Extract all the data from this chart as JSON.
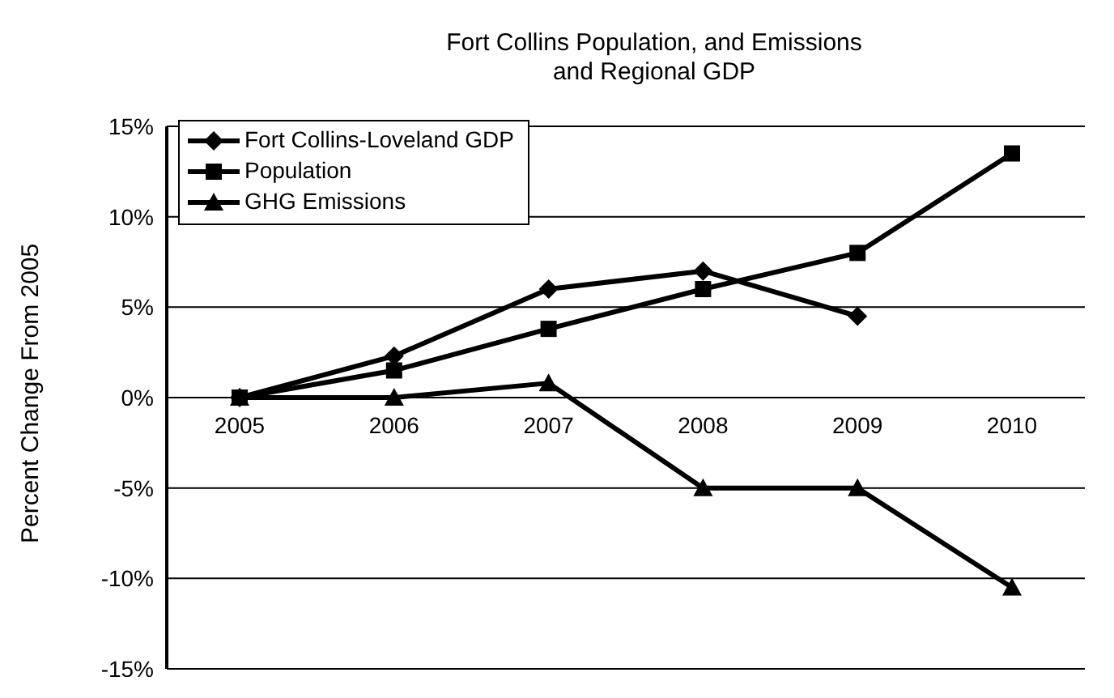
{
  "chart_data": {
    "type": "line",
    "title": "Fort Collins Population, and Emissions\nand Regional GDP",
    "ylabel": "Percent Change From 2005",
    "categories": [
      "2005",
      "2006",
      "2007",
      "2008",
      "2009",
      "2010"
    ],
    "series": [
      {
        "name": "Fort Collins-Loveland GDP",
        "color": "#000000",
        "marker": "diamond",
        "values": [
          0,
          2.3,
          6,
          7,
          4.5,
          null
        ]
      },
      {
        "name": "Population",
        "color": "#000000",
        "marker": "square",
        "values": [
          0,
          1.5,
          3.8,
          6,
          8,
          13.5
        ]
      },
      {
        "name": "GHG Emissions",
        "color": "#000000",
        "marker": "triangle",
        "values": [
          0,
          0,
          0.8,
          -5,
          -5,
          -10.5
        ]
      }
    ],
    "ylim": [
      -15,
      15
    ],
    "yticks": [
      {
        "value": -15,
        "label": "-15%"
      },
      {
        "value": -10,
        "label": "-10%"
      },
      {
        "value": -5,
        "label": "-5%"
      },
      {
        "value": 0,
        "label": "0%"
      },
      {
        "value": 5,
        "label": "5%"
      },
      {
        "value": 10,
        "label": "10%"
      },
      {
        "value": 15,
        "label": "15%"
      }
    ],
    "grid": "y",
    "legend": "top left",
    "line_style": "solid"
  }
}
